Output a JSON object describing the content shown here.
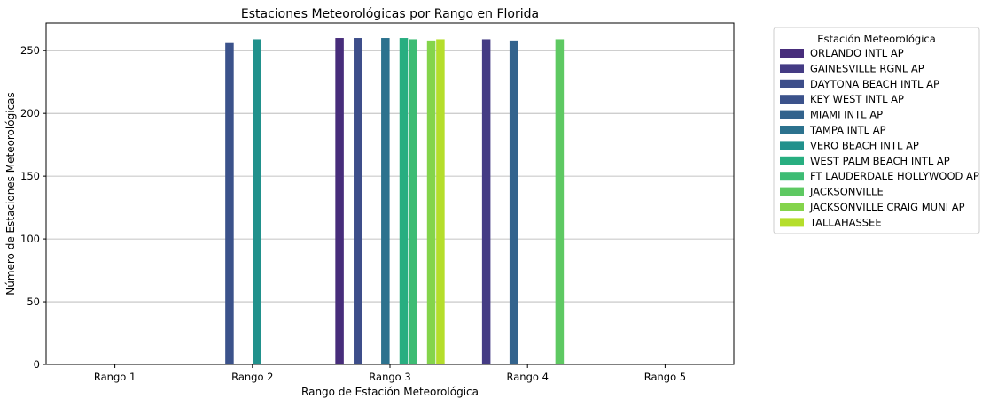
{
  "chart_data": {
    "type": "bar",
    "title": "Estaciones Meteorológicas por Rango en Florida",
    "xlabel": "Rango de Estación Meteorológica",
    "ylabel": "Número de Estaciones Meteorológicas",
    "categories": [
      "Rango 1",
      "Rango 2",
      "Rango 3",
      "Rango 4",
      "Rango 5"
    ],
    "ylim": [
      0,
      272
    ],
    "yticks": [
      0,
      50,
      100,
      150,
      200,
      250
    ],
    "grid": "horizontal",
    "legend": {
      "title": "Estación Meteorológica",
      "placement": "outside-right-top"
    },
    "series": [
      {
        "name": "ORLANDO INTL AP",
        "color": "#472d7b",
        "values": [
          null,
          null,
          260,
          null,
          null
        ]
      },
      {
        "name": "GAINESVILLE RGNL AP",
        "color": "#443b84",
        "values": [
          null,
          null,
          null,
          259,
          null
        ]
      },
      {
        "name": "DAYTONA BEACH INTL AP",
        "color": "#3d4e8a",
        "values": [
          null,
          null,
          260,
          null,
          null
        ]
      },
      {
        "name": "KEY WEST INTL AP",
        "color": "#3b528b",
        "values": [
          null,
          256,
          null,
          null,
          null
        ]
      },
      {
        "name": "MIAMI INTL AP",
        "color": "#33638d",
        "values": [
          null,
          null,
          null,
          258,
          null
        ]
      },
      {
        "name": "TAMPA INTL AP",
        "color": "#2c728e",
        "values": [
          null,
          null,
          260,
          null,
          null
        ]
      },
      {
        "name": "VERO BEACH INTL AP",
        "color": "#21918c",
        "values": [
          null,
          259,
          null,
          null,
          null
        ]
      },
      {
        "name": "WEST PALM BEACH INTL AP",
        "color": "#28ae80",
        "values": [
          null,
          null,
          260,
          null,
          null
        ]
      },
      {
        "name": "FT LAUDERDALE HOLLYWOOD AP",
        "color": "#3dbc74",
        "values": [
          null,
          null,
          259,
          null,
          null
        ]
      },
      {
        "name": "JACKSONVILLE",
        "color": "#5ec962",
        "values": [
          null,
          null,
          null,
          259,
          null
        ]
      },
      {
        "name": "JACKSONVILLE CRAIG MUNI AP",
        "color": "#84d44b",
        "values": [
          null,
          null,
          258,
          null,
          null
        ]
      },
      {
        "name": "TALLAHASSEE",
        "color": "#b5de2b",
        "values": [
          null,
          null,
          259,
          null,
          null
        ]
      }
    ]
  }
}
